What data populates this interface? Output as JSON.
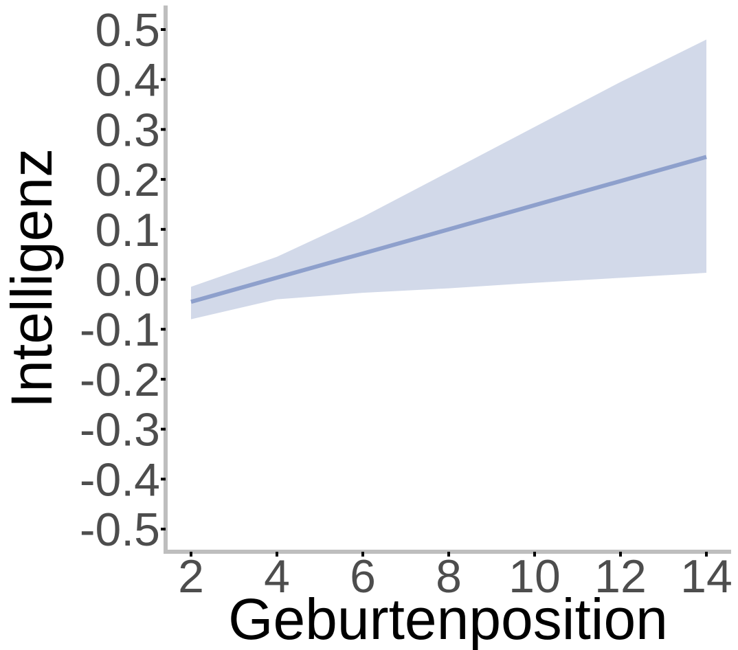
{
  "chart_data": {
    "type": "line",
    "xlabel": "Geburtenposition",
    "ylabel": "Intelligenz",
    "xlim": [
      2,
      14
    ],
    "ylim": [
      -0.5,
      0.5
    ],
    "x_ticks": [
      2,
      4,
      6,
      8,
      10,
      12,
      14
    ],
    "x_tick_labels": [
      "2",
      "4",
      "6",
      "8",
      "10",
      "12",
      "14"
    ],
    "y_ticks": [
      0.5,
      0.4,
      0.3,
      0.2,
      0.1,
      0.0,
      -0.1,
      -0.2,
      -0.3,
      -0.4,
      -0.5
    ],
    "y_tick_labels": [
      "0.5",
      "0.4",
      "0.3",
      "0.2",
      "0.1",
      "0.0",
      "-0.1",
      "-0.2",
      "-0.3",
      "-0.4",
      "-0.5"
    ],
    "grid": false,
    "series": [
      {
        "x": [
          2,
          14
        ],
        "values": [
          -0.045,
          0.245
        ],
        "color": "#8ea0cc"
      }
    ],
    "band": {
      "x": [
        2,
        4,
        6,
        8,
        10,
        12,
        14
      ],
      "upper": [
        -0.015,
        0.045,
        0.125,
        0.215,
        0.305,
        0.395,
        0.48
      ],
      "lower": [
        -0.08,
        -0.04,
        -0.027,
        -0.018,
        -0.007,
        0.003,
        0.013
      ],
      "color": "#d2d9e9"
    },
    "axis_color": "#bebebe"
  }
}
